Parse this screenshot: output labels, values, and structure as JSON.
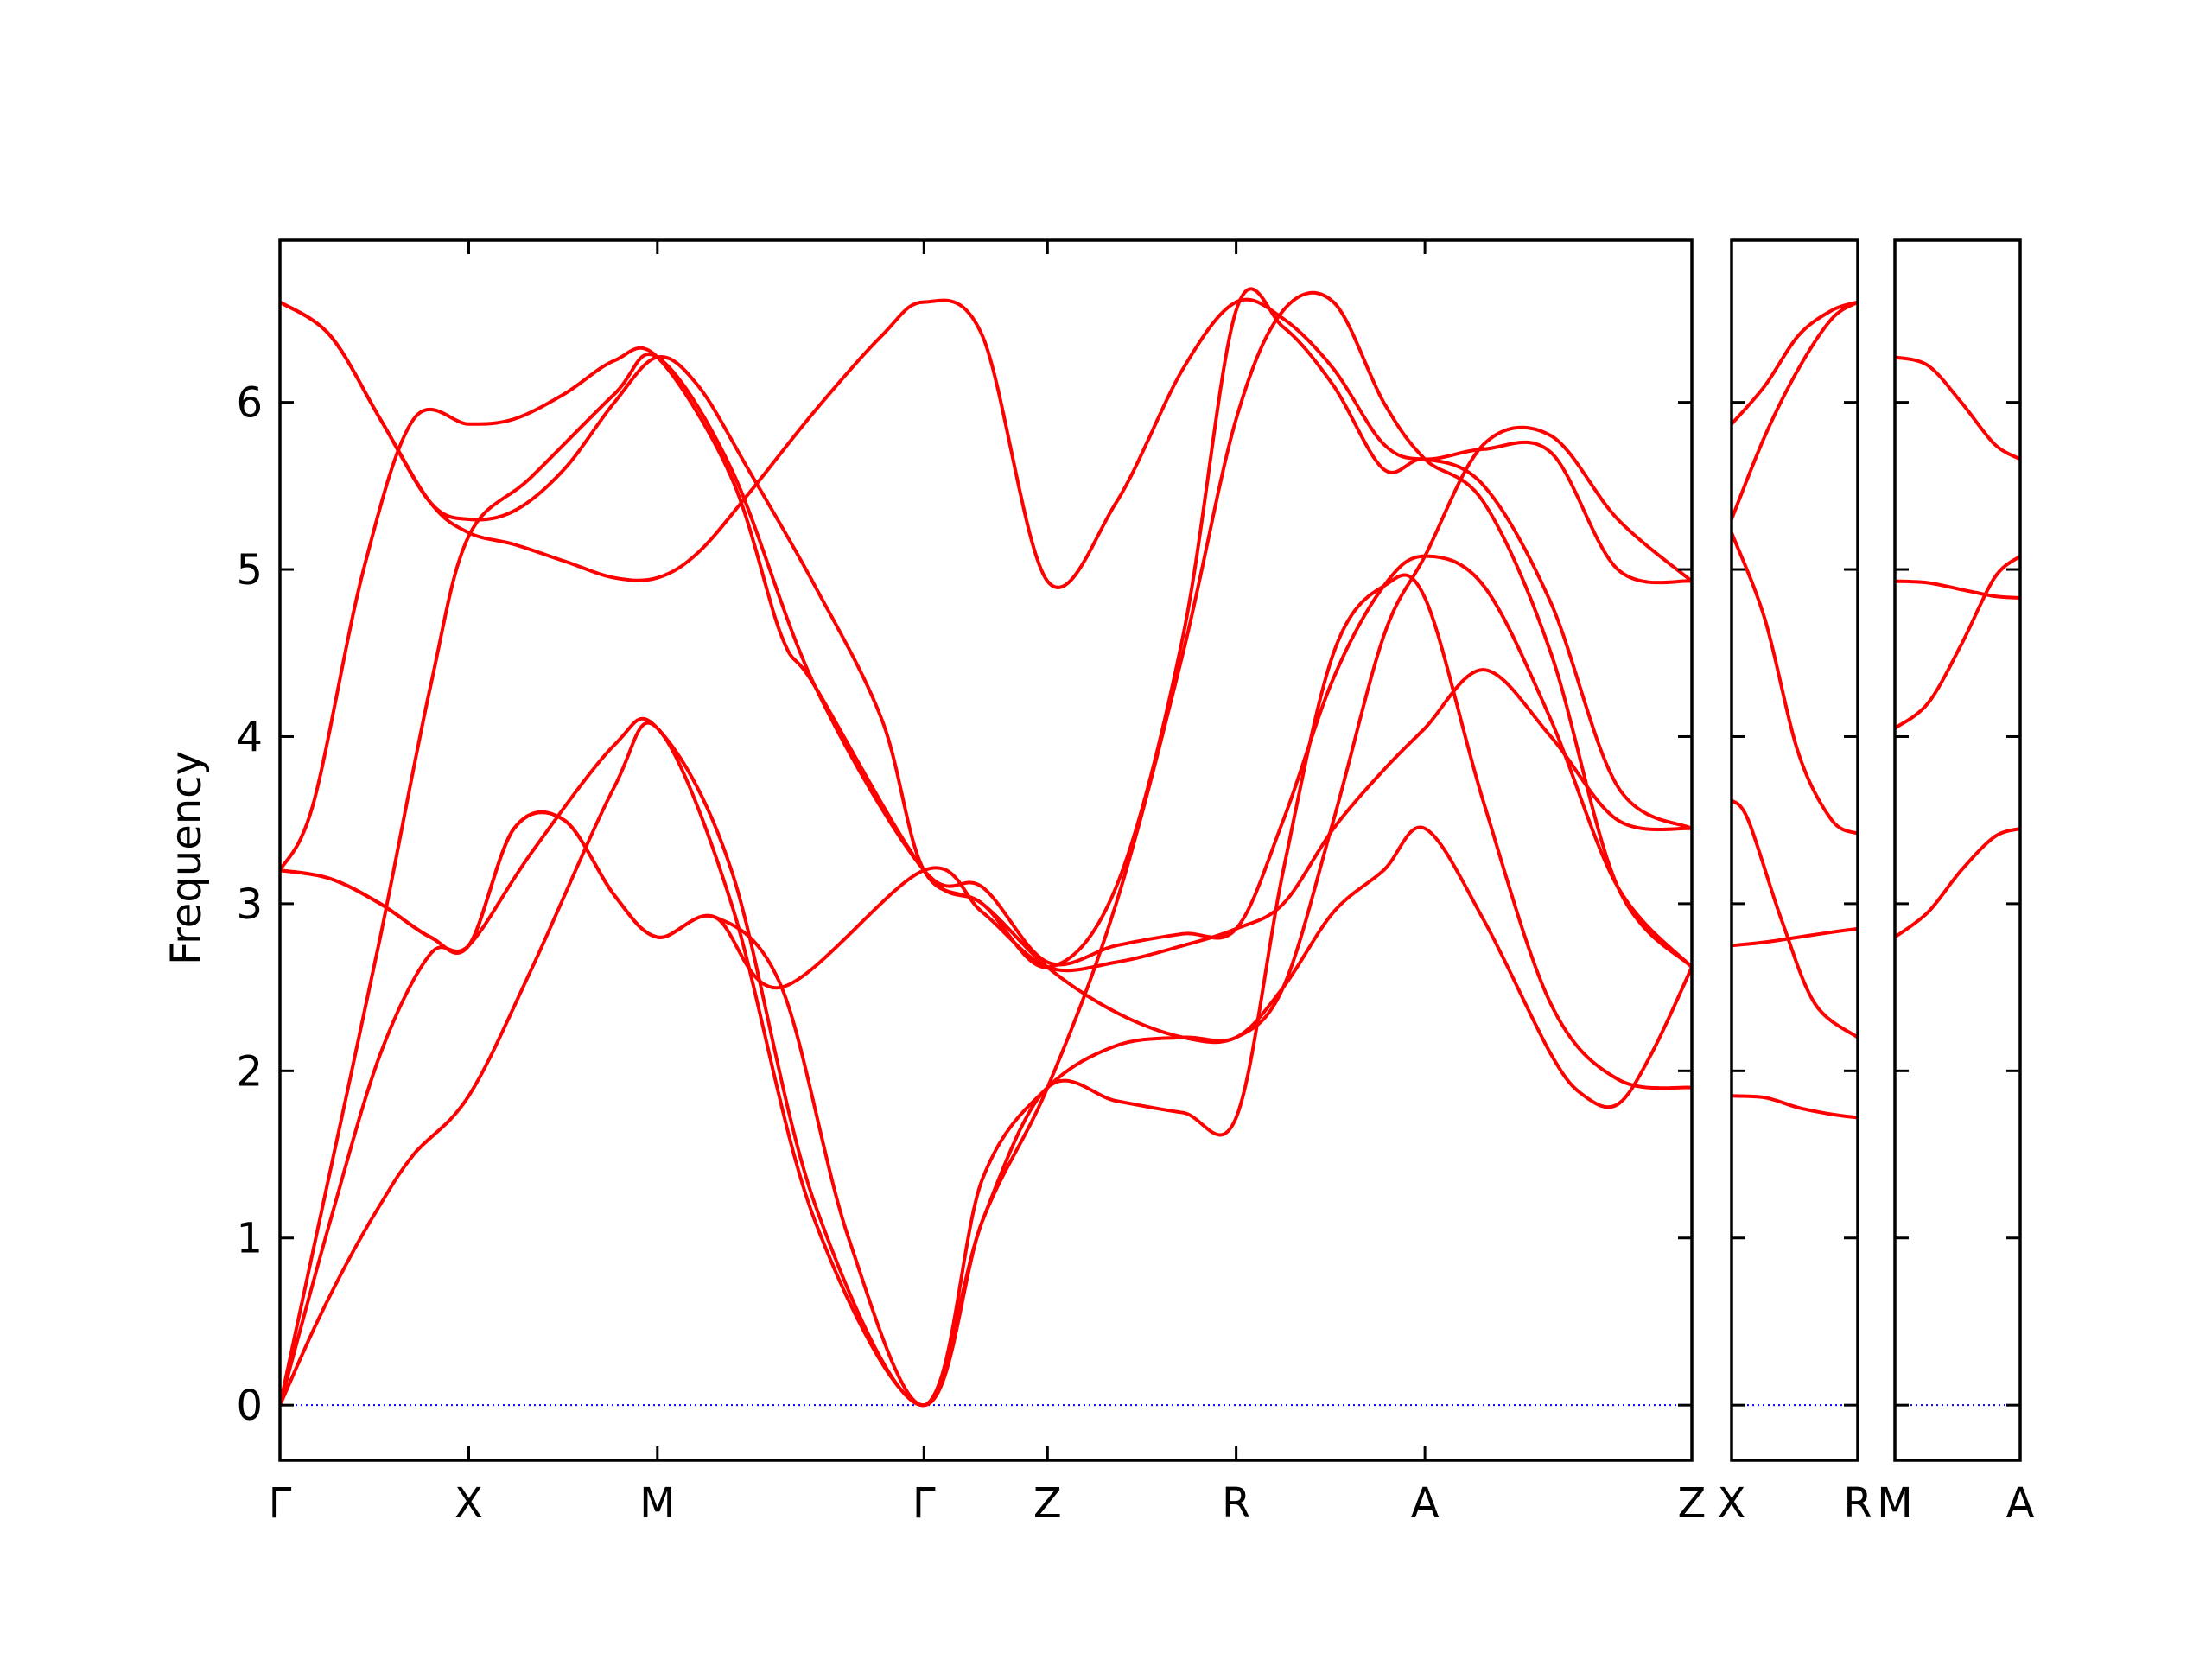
{
  "chart_data": {
    "type": "line",
    "title": "",
    "xlabel": "",
    "ylabel": "Frequency",
    "ylim": [
      -0.33,
      6.97
    ],
    "yticks": [
      0,
      1,
      2,
      3,
      4,
      5,
      6
    ],
    "grid": false,
    "legend": "none",
    "line_color": "#ff0000",
    "zero_line_color": "#0000ff",
    "panels": [
      {
        "labels": [
          "Γ",
          "X",
          "M",
          "Γ",
          "Z",
          "R",
          "A",
          "Z"
        ],
        "label_positions": [
          0,
          0.1129,
          0.2257,
          0.3851,
          0.459,
          0.5718,
          0.6847,
          0.8443
        ],
        "x_range": [
          0,
          0.8443
        ],
        "bands": [
          {
            "x": [
              0,
              0.02,
              0.04,
              0.06,
              0.08,
              0.1129,
              0.15,
              0.2,
              0.2257,
              0.27,
              0.32,
              0.3851,
              0.42,
              0.459,
              0.5,
              0.54,
              0.5718,
              0.6,
              0.63,
              0.66,
              0.6847,
              0.72,
              0.76,
              0.8,
              0.8443
            ],
            "y": [
              0,
              0.45,
              0.85,
              1.2,
              1.5,
              1.85,
              2.6,
              3.7,
              4.05,
              3.0,
              1.1,
              0,
              1.1,
              1.9,
              1.82,
              1.75,
              1.72,
              3.2,
              4.5,
              4.9,
              4.83,
              3.6,
              2.4,
              1.95,
              1.9
            ]
          },
          {
            "x": [
              0,
              0.03,
              0.06,
              0.09,
              0.1129,
              0.15,
              0.2,
              0.2257,
              0.27,
              0.32,
              0.3851,
              0.42,
              0.459,
              0.5,
              0.54,
              0.5718,
              0.6,
              0.63,
              0.66,
              0.6847,
              0.72,
              0.76,
              0.78,
              0.8,
              0.82,
              0.8443
            ],
            "y": [
              0,
              1.1,
              2.1,
              2.7,
              2.75,
              3.3,
              3.95,
              4.05,
              3.2,
              1.2,
              0,
              1.35,
              1.9,
              2.15,
              2.2,
              2.2,
              2.5,
              2.95,
              3.2,
              3.45,
              2.9,
              2.1,
              1.85,
              1.8,
              2.1,
              2.62
            ]
          },
          {
            "x": [
              0,
              0.03,
              0.06,
              0.09,
              0.1129,
              0.15,
              0.2,
              0.2257,
              0.27,
              0.32,
              0.3851,
              0.42,
              0.459,
              0.5,
              0.54,
              0.5718,
              0.6,
              0.63,
              0.66,
              0.6847,
              0.72,
              0.76,
              0.8,
              0.8443
            ],
            "y": [
              0,
              1.4,
              2.8,
              4.3,
              5.2,
              5.55,
              6.05,
              6.27,
              5.6,
              4.3,
              3.2,
              3.1,
              2.65,
              2.75,
              2.82,
              2.85,
              3.5,
              4.35,
              4.9,
              5.08,
              4.9,
              4.1,
              3.1,
              2.62
            ]
          },
          {
            "x": [
              0,
              0.02,
              0.05,
              0.08,
              0.1129,
              0.14,
              0.17,
              0.2,
              0.2257,
              0.27,
              0.3,
              0.32,
              0.3851,
              0.42,
              0.459,
              0.5,
              0.54,
              0.5718,
              0.6,
              0.63,
              0.66,
              0.6847,
              0.72,
              0.76,
              0.8,
              0.8443
            ],
            "y": [
              3.2,
              3.6,
              5.0,
              5.9,
              5.87,
              5.9,
              6.05,
              6.25,
              6.27,
              5.55,
              4.6,
              4.3,
              3.2,
              3.0,
              2.62,
              2.35,
              2.2,
              2.2,
              2.5,
              3.5,
              4.6,
              5.08,
              5.75,
              5.8,
              5.3,
              4.93
            ]
          },
          {
            "x": [
              0,
              0.03,
              0.06,
              0.09,
              0.1129,
              0.14,
              0.17,
              0.2,
              0.2257,
              0.26,
              0.3,
              0.34,
              0.3851,
              0.42,
              0.459,
              0.5,
              0.54,
              0.5718,
              0.6,
              0.63,
              0.66,
              0.6847,
              0.72,
              0.76,
              0.8,
              0.8443
            ],
            "y": [
              3.2,
              3.15,
              3.0,
              2.8,
              2.75,
              3.45,
              3.5,
              3.05,
              2.8,
              2.92,
              2.5,
              1.0,
              0,
              1.1,
              1.9,
              3.0,
              4.5,
              5.9,
              6.55,
              6.6,
              6.0,
              5.66,
              5.4,
              4.5,
              3.1,
              2.62
            ]
          },
          {
            "x": [
              0,
              0.03,
              0.06,
              0.09,
              0.1129,
              0.14,
              0.17,
              0.2,
              0.2257,
              0.26,
              0.3,
              0.3851,
              0.42,
              0.459,
              0.5,
              0.54,
              0.5718,
              0.6,
              0.63,
              0.66,
              0.6847,
              0.72,
              0.76,
              0.8,
              0.8443
            ],
            "y": [
              3.2,
              3.15,
              3.0,
              2.8,
              2.75,
              3.45,
              3.5,
              3.05,
              2.8,
              2.92,
              2.5,
              3.2,
              2.95,
              2.62,
              2.65,
              2.75,
              2.85,
              3.0,
              3.45,
              3.8,
              4.05,
              4.4,
              4.0,
              3.5,
              3.45
            ]
          },
          {
            "x": [
              0,
              0.03,
              0.06,
              0.09,
              0.1129,
              0.14,
              0.17,
              0.2,
              0.2257,
              0.25,
              0.28,
              0.32,
              0.36,
              0.3851,
              0.42,
              0.459,
              0.5,
              0.54,
              0.5718,
              0.6,
              0.63,
              0.66,
              0.6847,
              0.72,
              0.76,
              0.8,
              0.8443
            ],
            "y": [
              6.6,
              6.4,
              5.9,
              5.4,
              5.22,
              5.15,
              5.05,
              4.95,
              4.95,
              5.1,
              5.45,
              5.95,
              6.4,
              6.6,
              6.4,
              4.93,
              5.4,
              6.2,
              6.6,
              6.5,
              6.2,
              5.75,
              5.66,
              5.72,
              5.7,
              5.0,
              4.93
            ]
          },
          {
            "x": [
              0,
              0.03,
              0.06,
              0.09,
              0.1129,
              0.14,
              0.17,
              0.2,
              0.2257,
              0.25,
              0.28,
              0.32,
              0.36,
              0.3851,
              0.42,
              0.459,
              0.5,
              0.54,
              0.5718,
              0.6,
              0.63,
              0.66,
              0.6847,
              0.72,
              0.76,
              0.8,
              0.8443
            ],
            "y": [
              6.6,
              6.4,
              5.9,
              5.4,
              5.3,
              5.35,
              5.6,
              6.0,
              6.27,
              6.1,
              5.6,
              4.9,
              4.1,
              3.2,
              3.0,
              2.62,
              3.1,
              4.6,
              6.55,
              6.45,
              6.1,
              5.6,
              5.66,
              5.5,
              4.8,
              3.7,
              3.45
            ]
          }
        ]
      },
      {
        "labels": [
          "X",
          "R"
        ],
        "label_positions": [
          0,
          0.0755
        ],
        "x_range": [
          0,
          0.0755
        ],
        "bands": [
          {
            "x": [
              0,
              0.02,
              0.04,
              0.06,
              0.0755
            ],
            "y": [
              1.85,
              1.84,
              1.78,
              1.74,
              1.72
            ]
          },
          {
            "x": [
              0,
              0.02,
              0.04,
              0.06,
              0.0755
            ],
            "y": [
              2.75,
              2.77,
              2.8,
              2.83,
              2.85
            ]
          },
          {
            "x": [
              0,
              0.01,
              0.03,
              0.05,
              0.0755
            ],
            "y": [
              3.62,
              3.5,
              2.9,
              2.4,
              2.2
            ]
          },
          {
            "x": [
              0,
              0.02,
              0.04,
              0.06,
              0.0755
            ],
            "y": [
              5.22,
              4.7,
              3.9,
              3.5,
              3.42
            ]
          },
          {
            "x": [
              0,
              0.02,
              0.04,
              0.06,
              0.0755
            ],
            "y": [
              5.3,
              5.8,
              6.2,
              6.5,
              6.6
            ]
          },
          {
            "x": [
              0,
              0.02,
              0.04,
              0.06,
              0.0755
            ],
            "y": [
              5.87,
              6.1,
              6.4,
              6.55,
              6.6
            ]
          }
        ]
      },
      {
        "labels": [
          "M",
          "A"
        ],
        "label_positions": [
          0,
          0.0755
        ],
        "x_range": [
          0,
          0.0755
        ],
        "bands": [
          {
            "x": [
              0,
              0.02,
              0.04,
              0.06,
              0.0755
            ],
            "y": [
              2.8,
              2.95,
              3.2,
              3.4,
              3.45
            ]
          },
          {
            "x": [
              0,
              0.02,
              0.04,
              0.06,
              0.0755
            ],
            "y": [
              4.05,
              4.2,
              4.55,
              4.95,
              5.08
            ]
          },
          {
            "x": [
              0,
              0.02,
              0.04,
              0.06,
              0.0755
            ],
            "y": [
              4.93,
              4.92,
              4.88,
              4.84,
              4.83
            ]
          },
          {
            "x": [
              0,
              0.02,
              0.04,
              0.06,
              0.0755
            ],
            "y": [
              6.27,
              6.22,
              6.0,
              5.75,
              5.66
            ]
          }
        ]
      }
    ]
  }
}
